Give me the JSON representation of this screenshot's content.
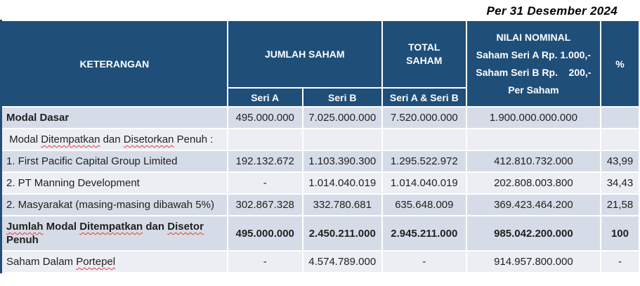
{
  "title": "Per 31 Desember 2024",
  "colors": {
    "header_bg": "#1F4E79",
    "header_text": "#ffffff",
    "band_a": "#D6DCE7",
    "band_b": "#ECEEF4",
    "body_text": "#1f1f1f",
    "spellcheck_underline": "#e03c31"
  },
  "table": {
    "header": {
      "keterangan": "KETERANGAN",
      "jumlah_saham": "JUMLAH SAHAM",
      "total_saham": "TOTAL\nSAHAM",
      "nilai_nominal_lines": [
        "NILAI NOMINAL",
        "Saham Seri A Rp. 1.000,-",
        "Saham Seri B Rp.    200,-",
        "Per Saham"
      ],
      "percent": "%",
      "seri_a": "Seri A",
      "seri_b": "Seri B",
      "seri_ab": "Seri A & Seri B"
    },
    "rows": [
      {
        "label": "Modal Dasar",
        "seri_a": "495.000.000",
        "seri_b": "7.025.000.000",
        "total": "7.520.000.000",
        "nominal": "1.900.000.000.000",
        "pct": "",
        "band": "a",
        "bold_label": true,
        "bold_values": false,
        "spellcheck": false
      },
      {
        "label": " Modal Ditempatkan dan Disetorkan Penuh :",
        "seri_a": "",
        "seri_b": "",
        "total": "",
        "nominal": "",
        "pct": "",
        "band": "b",
        "bold_label": false,
        "bold_values": false,
        "spellcheck": true
      },
      {
        "label": "1. First Pacific Capital Group Limited",
        "seri_a": "192.132.672",
        "seri_b": "1.103.390.300",
        "total": "1.295.522.972",
        "nominal": "412.810.732.000",
        "pct": "43,99",
        "band": "a",
        "bold_label": false,
        "bold_values": false,
        "spellcheck": false
      },
      {
        "label": "2. PT Manning Development",
        "seri_a": "-",
        "seri_b": "1.014.040.019",
        "total": "1.014.040.019",
        "nominal": "202.808.003.800",
        "pct": "34,43",
        "band": "b",
        "bold_label": false,
        "bold_values": false,
        "spellcheck": false
      },
      {
        "label": "2. Masyarakat (masing-masing dibawah 5%)",
        "seri_a": "302.867.328",
        "seri_b": "332.780.681",
        "total": "635.648.009",
        "nominal": "369.423.464.200",
        "pct": "21,58",
        "band": "a",
        "bold_label": false,
        "bold_values": false,
        "spellcheck": false
      },
      {
        "label": "Jumlah Modal Ditempatkan dan Disetor Penuh",
        "seri_a": "495.000.000",
        "seri_b": "2.450.211.000",
        "total": "2.945.211.000",
        "nominal": "985.042.200.000",
        "pct": "100",
        "band": "a",
        "bold_label": true,
        "bold_values": true,
        "spellcheck": true
      },
      {
        "label": "Saham Dalam Portepel",
        "seri_a": "-",
        "seri_b": "4.574.789.000",
        "total": "-",
        "nominal": "914.957.800.000",
        "pct": "-",
        "band": "b",
        "bold_label": false,
        "bold_values": false,
        "spellcheck": true
      }
    ],
    "spellcheck_words": [
      "Ditempatkan",
      "Disetorkan",
      "Disetor",
      "Jumlah",
      "Portepel"
    ]
  }
}
